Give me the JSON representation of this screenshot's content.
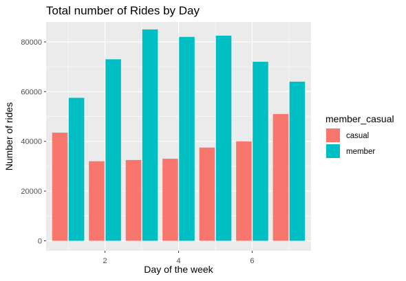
{
  "chart_data": {
    "type": "bar",
    "title": "Total number of Rides by Day",
    "xlabel": "Day of the week",
    "ylabel": "Number of rides",
    "x": [
      1,
      2,
      3,
      4,
      5,
      6,
      7
    ],
    "xlim": [
      0.4,
      7.6
    ],
    "ylim": [
      -4000,
      88000
    ],
    "x_ticks": [
      2,
      4,
      6
    ],
    "x_tick_labels": [
      "2",
      "4",
      "6"
    ],
    "y_ticks": [
      0,
      20000,
      40000,
      60000,
      80000
    ],
    "y_tick_labels": [
      "0",
      "20000",
      "40000",
      "60000",
      "80000"
    ],
    "grid": true,
    "legend": {
      "title": "member_casual",
      "position": "right"
    },
    "series": [
      {
        "name": "casual",
        "color": "#F8766D",
        "values": [
          43500,
          32000,
          32500,
          33000,
          37500,
          40000,
          51000
        ]
      },
      {
        "name": "member",
        "color": "#00BFC4",
        "values": [
          57500,
          73000,
          85000,
          82000,
          82500,
          72000,
          64000
        ]
      }
    ]
  }
}
